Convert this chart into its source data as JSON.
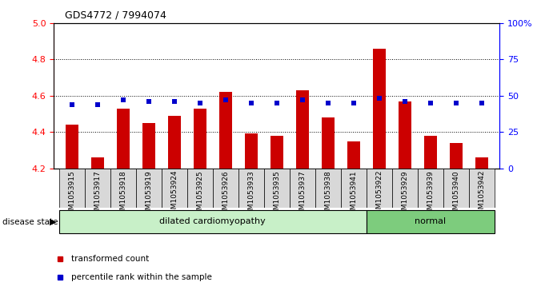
{
  "title": "GDS4772 / 7994074",
  "samples": [
    "GSM1053915",
    "GSM1053917",
    "GSM1053918",
    "GSM1053919",
    "GSM1053924",
    "GSM1053925",
    "GSM1053926",
    "GSM1053933",
    "GSM1053935",
    "GSM1053937",
    "GSM1053938",
    "GSM1053941",
    "GSM1053922",
    "GSM1053929",
    "GSM1053939",
    "GSM1053940",
    "GSM1053942"
  ],
  "transformed_counts": [
    4.44,
    4.26,
    4.53,
    4.45,
    4.49,
    4.53,
    4.62,
    4.39,
    4.38,
    4.63,
    4.48,
    4.35,
    4.86,
    4.57,
    4.38,
    4.34,
    4.26
  ],
  "percentile_ranks": [
    44,
    44,
    47,
    46,
    46,
    45,
    47,
    45,
    45,
    47,
    45,
    45,
    48,
    46,
    45,
    45,
    45
  ],
  "disease_groups": [
    {
      "label": "dilated cardiomyopathy",
      "start": 0,
      "end": 11,
      "color": "#c8f0c8"
    },
    {
      "label": "normal",
      "start": 12,
      "end": 16,
      "color": "#7dcc7d"
    }
  ],
  "bar_color": "#cc0000",
  "dot_color": "#0000cc",
  "ylim_left": [
    4.2,
    5.0
  ],
  "ylim_right": [
    0,
    100
  ],
  "yticks_left": [
    4.2,
    4.4,
    4.6,
    4.8,
    5.0
  ],
  "yticks_right": [
    0,
    25,
    50,
    75,
    100
  ],
  "ytick_labels_right": [
    "0",
    "25",
    "50",
    "75",
    "100%"
  ],
  "grid_lines": [
    4.4,
    4.6,
    4.8
  ],
  "bar_width": 0.5,
  "baseline": 4.2,
  "xticklabel_bg": "#d8d8d8",
  "legend_items": [
    {
      "color": "#cc0000",
      "marker": "s",
      "label": "transformed count"
    },
    {
      "color": "#0000cc",
      "marker": "s",
      "label": "percentile rank within the sample"
    }
  ]
}
